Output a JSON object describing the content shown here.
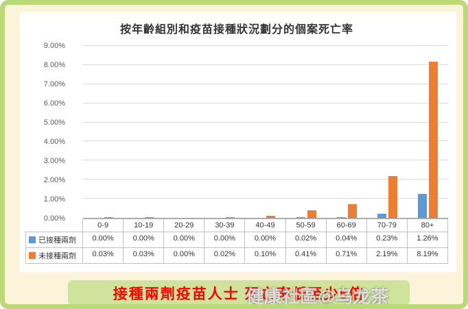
{
  "page": {
    "banner_text": "接種兩劑疫苗人士 死亡率低至少5倍",
    "banner_text_color": "#fe0000",
    "banner_bg_color": "#cfe39c",
    "watermark": "健康社區@乌龙茶"
  },
  "chart_data": {
    "type": "bar",
    "title": "按年齡組別和疫苗接種狀況劃分的個案死亡率",
    "categories": [
      "0-9",
      "10-19",
      "20-29",
      "30-39",
      "40-49",
      "50-59",
      "60-69",
      "70-79",
      "80+"
    ],
    "series": [
      {
        "name": "已接種兩劑",
        "color": "#5B9BD5",
        "values": [
          0,
          0,
          0,
          0,
          0,
          0.02,
          0.04,
          0.23,
          1.26
        ]
      },
      {
        "name": "未接種兩劑",
        "color": "#ED7D31",
        "values": [
          0.03,
          0.03,
          0,
          0.02,
          0.1,
          0.41,
          0.71,
          2.19,
          8.19
        ]
      }
    ],
    "value_labels": [
      [
        "0.00%",
        "0.00%",
        "0.00%",
        "0.00%",
        "0.00%",
        "0.02%",
        "0.04%",
        "0.23%",
        "1.26%"
      ],
      [
        "0.03%",
        "0.03%",
        "0.00%",
        "0.02%",
        "0.10%",
        "0.41%",
        "0.71%",
        "2.19%",
        "8.19%"
      ]
    ],
    "xlabel": "",
    "ylabel": "",
    "ylim": [
      0,
      9
    ],
    "ytick_labels": [
      "0.00%",
      "1.00%",
      "2.00%",
      "3.00%",
      "4.00%",
      "5.00%",
      "6.00%",
      "7.00%",
      "8.00%",
      "9.00%"
    ],
    "grid": true,
    "legend_position": "table-left"
  }
}
